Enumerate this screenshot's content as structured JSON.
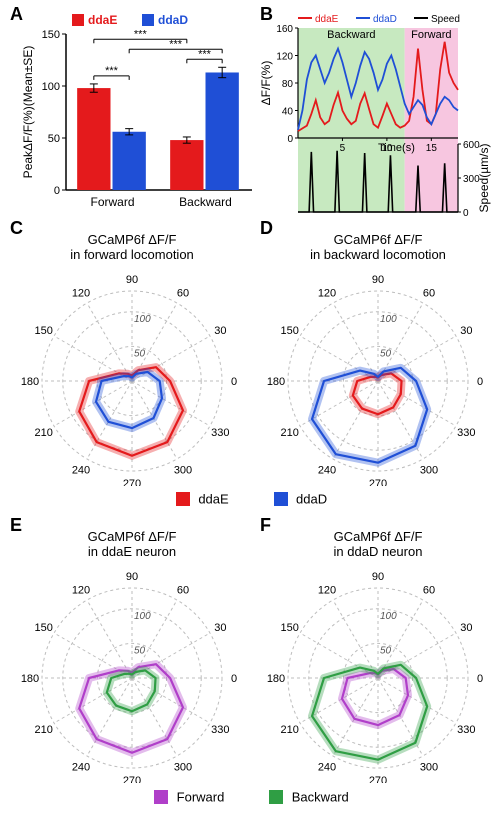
{
  "colors": {
    "ddaE": "#e41a1c",
    "ddaD": "#1f4fd6",
    "speed": "#000000",
    "forward_shade": "#c7e9c0",
    "backward_shade": "#f7c6e0",
    "forward_line": "#b03fc9",
    "backward_line": "#2f9e44",
    "grid": "#bdbdbd",
    "axis": "#000000",
    "ddaE_fill": "rgba(228,26,28,0.35)",
    "ddaD_fill": "rgba(31,79,214,0.35)",
    "forward_fill": "rgba(176,63,201,0.35)",
    "backward_fill": "rgba(47,158,68,0.35)"
  },
  "panelA": {
    "label": "A",
    "ylabel": "PeakΔF/F(%)(Mean±SE)",
    "title_fontsize": 12,
    "categories": [
      "Forward",
      "Backward"
    ],
    "series": [
      {
        "name": "ddaE",
        "color": "#e41a1c",
        "values": [
          98,
          48
        ],
        "errors": [
          4,
          3
        ]
      },
      {
        "name": "ddaD",
        "color": "#1f4fd6",
        "values": [
          56,
          113
        ],
        "errors": [
          3,
          5
        ]
      }
    ],
    "ylim": [
      0,
      150
    ],
    "ytick_step": 50,
    "bar_width": 0.38,
    "sig_label": "***"
  },
  "panelB": {
    "label": "B",
    "x_label": "Time(s)",
    "y1_label": "ΔF/F(%)",
    "y2_label": "Speed(µm/s)",
    "x_ticks": [
      5,
      10,
      15
    ],
    "y1_ticks": [
      0,
      40,
      80,
      120,
      160
    ],
    "y2_ticks": [
      0,
      300,
      600
    ],
    "regions": [
      {
        "name": "Backward",
        "xmin": 0,
        "xmax": 12,
        "fill": "#c7e9c0"
      },
      {
        "name": "Forward",
        "xmin": 12,
        "xmax": 18,
        "fill": "#f7c6e0"
      }
    ],
    "series_top": [
      {
        "name": "ddaE",
        "color": "#e41a1c",
        "points": [
          [
            0,
            10
          ],
          [
            1,
            18
          ],
          [
            1.5,
            35
          ],
          [
            2,
            55
          ],
          [
            2.5,
            30
          ],
          [
            3,
            20
          ],
          [
            3.5,
            25
          ],
          [
            4,
            48
          ],
          [
            4.5,
            66
          ],
          [
            5,
            40
          ],
          [
            5.5,
            28
          ],
          [
            6,
            20
          ],
          [
            6.5,
            25
          ],
          [
            7,
            50
          ],
          [
            7.5,
            65
          ],
          [
            8,
            42
          ],
          [
            8.5,
            20
          ],
          [
            9,
            15
          ],
          [
            9.5,
            32
          ],
          [
            10,
            50
          ],
          [
            10.5,
            35
          ],
          [
            11,
            20
          ],
          [
            11.5,
            15
          ],
          [
            12,
            18
          ],
          [
            12.5,
            25
          ],
          [
            13,
            60
          ],
          [
            13.5,
            130
          ],
          [
            14,
            70
          ],
          [
            14.5,
            25
          ],
          [
            15,
            20
          ],
          [
            15.5,
            35
          ],
          [
            16,
            100
          ],
          [
            16.5,
            140
          ],
          [
            17,
            95
          ],
          [
            17.5,
            80
          ],
          [
            18,
            70
          ]
        ]
      },
      {
        "name": "ddaD",
        "color": "#1f4fd6",
        "points": [
          [
            0,
            12
          ],
          [
            0.5,
            40
          ],
          [
            1,
            85
          ],
          [
            1.5,
            110
          ],
          [
            2,
            120
          ],
          [
            2.5,
            100
          ],
          [
            3,
            80
          ],
          [
            3.5,
            95
          ],
          [
            4,
            115
          ],
          [
            4.5,
            130
          ],
          [
            5,
            110
          ],
          [
            5.5,
            85
          ],
          [
            6,
            60
          ],
          [
            6.5,
            80
          ],
          [
            7,
            105
          ],
          [
            7.5,
            125
          ],
          [
            8,
            115
          ],
          [
            8.5,
            95
          ],
          [
            9,
            70
          ],
          [
            9.5,
            85
          ],
          [
            10,
            108
          ],
          [
            10.5,
            120
          ],
          [
            11,
            100
          ],
          [
            11.5,
            75
          ],
          [
            12,
            50
          ],
          [
            12.5,
            35
          ],
          [
            13,
            45
          ],
          [
            13.5,
            55
          ],
          [
            14,
            48
          ],
          [
            14.5,
            30
          ],
          [
            15,
            20
          ],
          [
            15.5,
            35
          ],
          [
            16,
            50
          ],
          [
            16.5,
            60
          ],
          [
            17,
            55
          ],
          [
            17.5,
            45
          ],
          [
            18,
            40
          ]
        ]
      }
    ],
    "series_speed": {
      "name": "Speed",
      "color": "#000000",
      "baseline": 0,
      "peaks": [
        [
          1.5,
          530
        ],
        [
          4.4,
          540
        ],
        [
          7.5,
          520
        ],
        [
          10.4,
          500
        ],
        [
          13.5,
          410
        ],
        [
          16.5,
          430
        ]
      ],
      "peak_halfwidth": 0.25
    },
    "xlim": [
      0,
      18
    ],
    "y1_lim": [
      0,
      160
    ],
    "y2_lim": [
      0,
      600
    ]
  },
  "polar_common": {
    "angles_deg": [
      0,
      30,
      60,
      90,
      120,
      150,
      180,
      210,
      240,
      270,
      300,
      330
    ],
    "radii": [
      50,
      100
    ],
    "grid_color": "#bdbdbd"
  },
  "panelC": {
    "label": "C",
    "title": "GCaMP6f ΔF/F\nin forward locomotion",
    "series": [
      {
        "name": "ddaE",
        "stroke": "#e41a1c",
        "fill": "rgba(228,26,28,0.35)",
        "values_by_angle": [
          55,
          40,
          18,
          8,
          12,
          22,
          62,
          88,
          102,
          108,
          102,
          85
        ]
      },
      {
        "name": "ddaD",
        "stroke": "#1f4fd6",
        "fill": "rgba(31,79,214,0.35)",
        "values_by_angle": [
          40,
          26,
          12,
          5,
          8,
          14,
          44,
          60,
          68,
          68,
          62,
          50
        ]
      }
    ]
  },
  "panelD": {
    "label": "D",
    "title": "GCaMP6f ΔF/F\nin backward locomotion",
    "series": [
      {
        "name": "ddaE",
        "stroke": "#e41a1c",
        "fill": "rgba(228,26,28,0.35)",
        "values_by_angle": [
          34,
          22,
          10,
          5,
          7,
          12,
          30,
          42,
          46,
          48,
          44,
          38
        ]
      },
      {
        "name": "ddaD",
        "stroke": "#1f4fd6",
        "fill": "rgba(31,79,214,0.35)",
        "values_by_angle": [
          55,
          38,
          16,
          6,
          12,
          30,
          78,
          110,
          122,
          118,
          108,
          82
        ]
      }
    ]
  },
  "panelE": {
    "label": "E",
    "title": "GCaMP6f ΔF/F\nin ddaE neuron",
    "series": [
      {
        "name": "Forward",
        "stroke": "#b03fc9",
        "fill": "rgba(176,63,201,0.35)",
        "values_by_angle": [
          55,
          40,
          18,
          8,
          12,
          22,
          62,
          88,
          102,
          108,
          102,
          85
        ]
      },
      {
        "name": "Backward",
        "stroke": "#2f9e44",
        "fill": "rgba(47,158,68,0.35)",
        "values_by_angle": [
          34,
          22,
          10,
          5,
          7,
          12,
          30,
          42,
          46,
          48,
          44,
          38
        ]
      }
    ]
  },
  "panelF": {
    "label": "F",
    "title": "GCaMP6f ΔF/F\nin ddaD neuron",
    "series": [
      {
        "name": "Forward",
        "stroke": "#b03fc9",
        "fill": "rgba(176,63,201,0.35)",
        "values_by_angle": [
          40,
          26,
          12,
          5,
          8,
          14,
          44,
          60,
          68,
          68,
          62,
          50
        ]
      },
      {
        "name": "Backward",
        "stroke": "#2f9e44",
        "fill": "rgba(47,158,68,0.35)",
        "values_by_angle": [
          55,
          38,
          16,
          6,
          12,
          30,
          78,
          110,
          122,
          118,
          108,
          82
        ]
      }
    ]
  },
  "legend_cd": [
    {
      "label": "ddaE",
      "color": "#e41a1c"
    },
    {
      "label": "ddaD",
      "color": "#1f4fd6"
    }
  ],
  "legend_ef": [
    {
      "label": "Forward",
      "color": "#b03fc9"
    },
    {
      "label": "Backward",
      "color": "#2f9e44"
    }
  ]
}
